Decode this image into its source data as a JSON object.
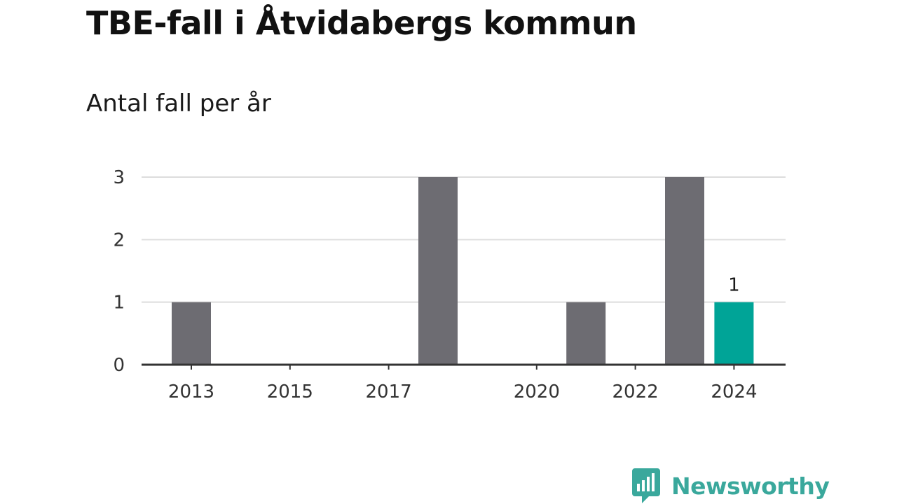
{
  "title": "TBE-fall i Åtvidabergs kommun",
  "subtitle": "Antal fall per år",
  "chart_data": {
    "type": "bar",
    "title": "TBE-fall i Åtvidabergs kommun",
    "subtitle": "Antal fall per år",
    "x": [
      2013,
      2014,
      2015,
      2016,
      2017,
      2018,
      2019,
      2020,
      2021,
      2022,
      2023,
      2024
    ],
    "values": [
      1,
      0,
      0,
      0,
      0,
      3,
      0,
      0,
      1,
      0,
      3,
      1
    ],
    "x_tick_labels": [
      "2013",
      "2015",
      "2017",
      "2020",
      "2022",
      "2024"
    ],
    "y_tick_labels": [
      "0",
      "1",
      "2",
      "3"
    ],
    "ylim": [
      0,
      3
    ],
    "grid": true,
    "highlight": {
      "x": 2024,
      "label": "1"
    },
    "colors": {
      "bar": "#6d6c72",
      "highlight": "#00a497",
      "grid": "#dddddd",
      "axis": "#333333"
    }
  },
  "brand": {
    "name": "Newsworthy",
    "color": "#3aa89c",
    "icon": "newsworthy-logo-icon"
  }
}
